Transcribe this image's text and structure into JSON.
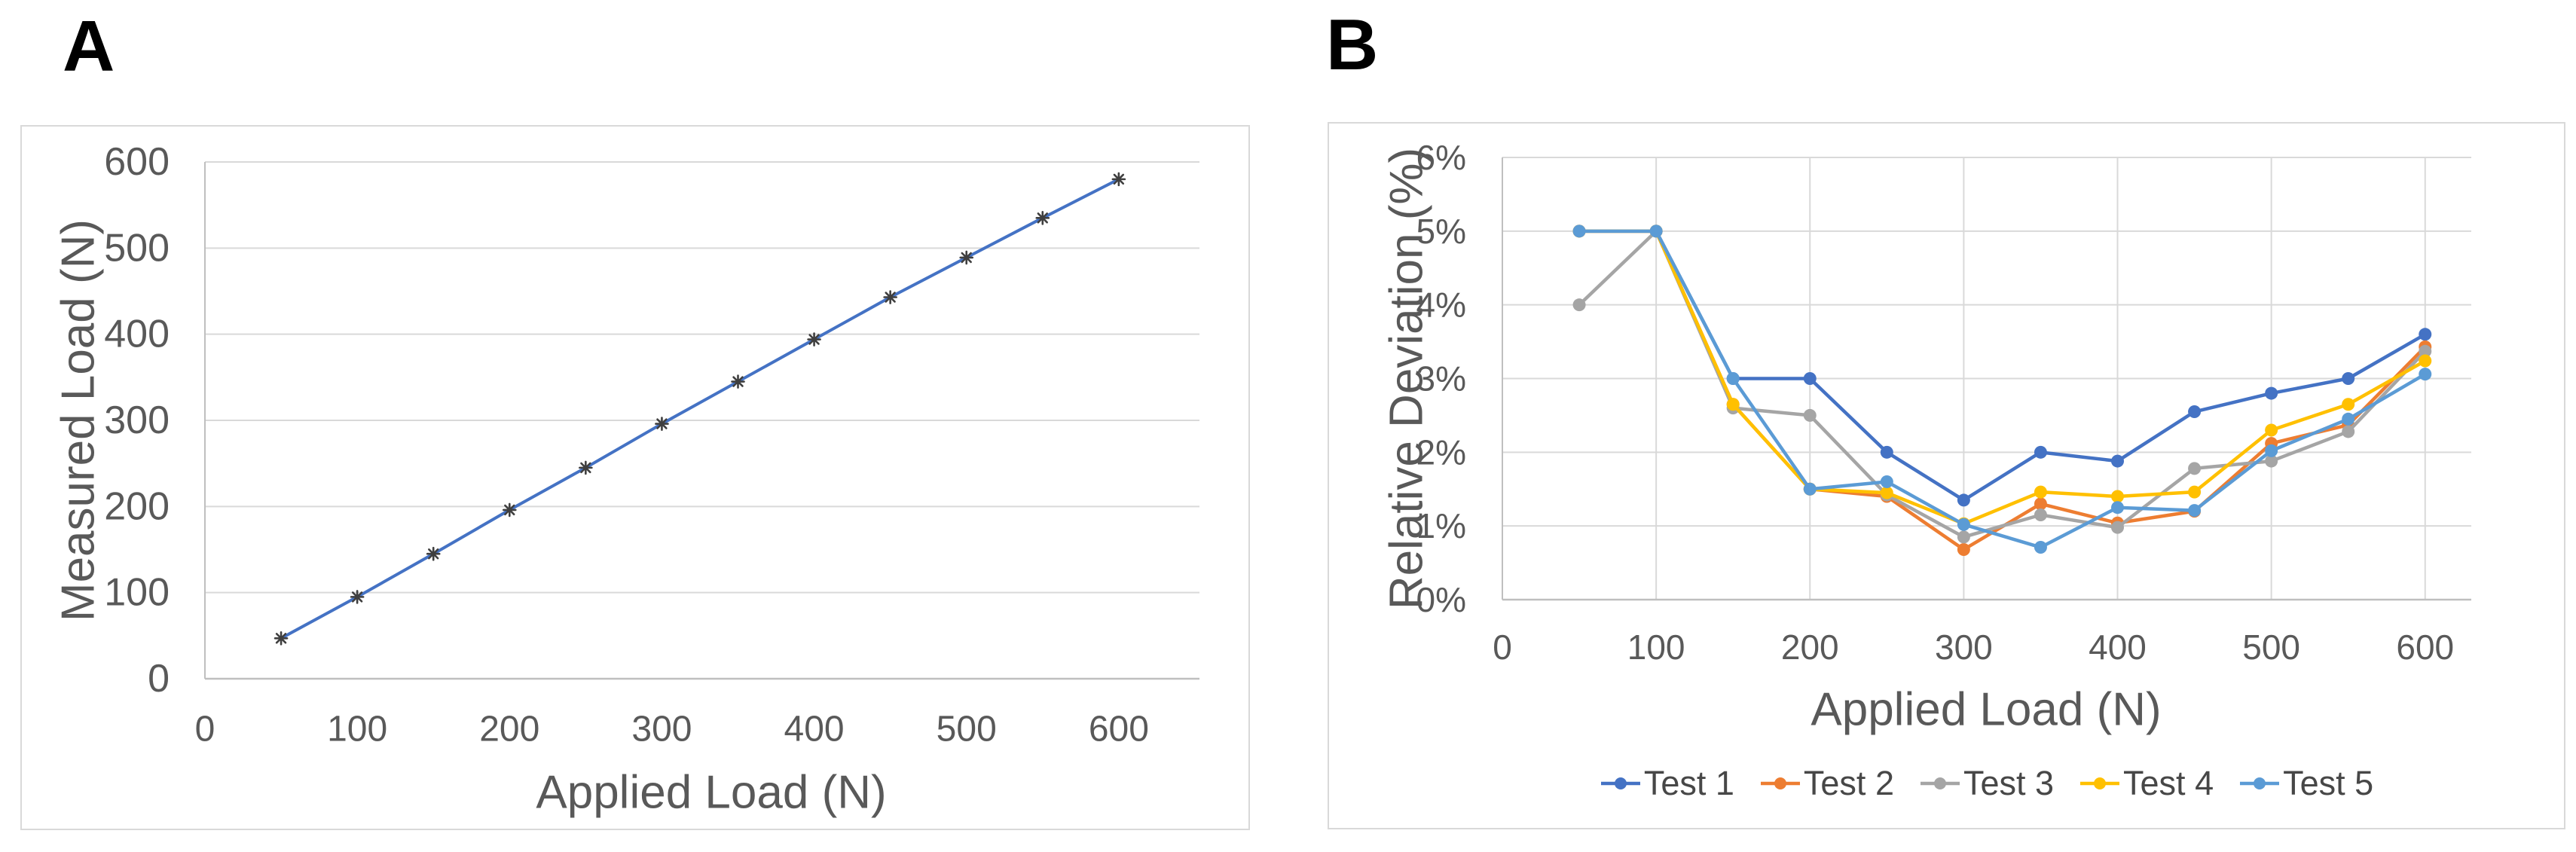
{
  "page": {
    "background": "#ffffff"
  },
  "panel_labels": [
    "A",
    "B"
  ],
  "styles": {
    "grid_color": "#D9D9D9",
    "axis_line_color": "#BFBFBF",
    "tick_label_color": "#595959",
    "axis_title_color": "#595959",
    "legend_text_color": "#474747",
    "chart_border_color": "#D9D9D9"
  },
  "chart_data": [
    {
      "panel": "A",
      "type": "line",
      "title": "",
      "xlabel": "Applied Load (N)",
      "ylabel": "Measured Load (N)",
      "x_tick_labels": [
        "0",
        "100",
        "200",
        "300",
        "400",
        "500",
        "600"
      ],
      "x_tick_values": [
        0,
        100,
        200,
        300,
        400,
        500,
        600
      ],
      "y_tick_labels": [
        "0",
        "100",
        "200",
        "300",
        "400",
        "500",
        "600"
      ],
      "y_tick_values": [
        0,
        100,
        200,
        300,
        400,
        500,
        600
      ],
      "xlim": [
        0,
        653
      ],
      "ylim": [
        0,
        600
      ],
      "grid": {
        "horizontal": true,
        "vertical": false
      },
      "x": [
        50,
        100,
        150,
        200,
        250,
        300,
        350,
        400,
        450,
        500,
        550,
        600
      ],
      "series": [
        {
          "name": "Measured Load",
          "color": "#4472C4",
          "marker": "asterisk",
          "marker_color": "#3F3F3F",
          "values": [
            47,
            95,
            145,
            196,
            245,
            296,
            345,
            394,
            443,
            489,
            535,
            580
          ]
        }
      ],
      "legend": {
        "visible": false,
        "entries": []
      }
    },
    {
      "panel": "B",
      "type": "line",
      "title": "",
      "xlabel": "Applied Load (N)",
      "ylabel": "Relative Deviation (%)",
      "x_tick_labels": [
        "0",
        "100",
        "200",
        "300",
        "400",
        "500",
        "600"
      ],
      "x_tick_values": [
        0,
        100,
        200,
        300,
        400,
        500,
        600
      ],
      "y_tick_labels": [
        "0%",
        "1%",
        "2%",
        "3%",
        "4%",
        "5%",
        "6%"
      ],
      "y_tick_values": [
        0,
        1,
        2,
        3,
        4,
        5,
        6
      ],
      "xlim": [
        0,
        630
      ],
      "ylim": [
        0,
        6
      ],
      "grid": {
        "horizontal": true,
        "vertical": true
      },
      "x": [
        50,
        100,
        150,
        200,
        250,
        300,
        350,
        400,
        450,
        500,
        550,
        600
      ],
      "series": [
        {
          "name": "Test 1",
          "color": "#4472C4",
          "marker": "circle",
          "values": [
            5.0,
            5.0,
            3.0,
            3.0,
            2.0,
            1.35,
            2.0,
            1.88,
            2.55,
            2.8,
            3.0,
            3.6
          ]
        },
        {
          "name": "Test 2",
          "color": "#ED7D31",
          "marker": "circle",
          "values": [
            5.0,
            5.0,
            2.65,
            1.5,
            1.4,
            0.68,
            1.3,
            1.04,
            1.2,
            2.12,
            2.37,
            3.43
          ]
        },
        {
          "name": "Test 3",
          "color": "#A5A5A5",
          "marker": "circle",
          "values": [
            4.0,
            5.0,
            2.6,
            2.5,
            1.42,
            0.85,
            1.15,
            0.98,
            1.78,
            1.88,
            2.28,
            3.37
          ]
        },
        {
          "name": "Test 4",
          "color": "#FFC000",
          "marker": "circle",
          "values": [
            5.0,
            5.0,
            2.65,
            1.5,
            1.45,
            1.03,
            1.46,
            1.4,
            1.46,
            2.3,
            2.65,
            3.24
          ]
        },
        {
          "name": "Test 5",
          "color": "#5B9BD5",
          "marker": "circle",
          "values": [
            5.0,
            5.0,
            3.0,
            1.5,
            1.6,
            1.02,
            0.71,
            1.25,
            1.21,
            2.02,
            2.45,
            3.06
          ]
        }
      ],
      "legend": {
        "visible": true,
        "position": "bottom",
        "entries": [
          "Test 1",
          "Test 2",
          "Test 3",
          "Test 4",
          "Test 5"
        ]
      }
    }
  ]
}
